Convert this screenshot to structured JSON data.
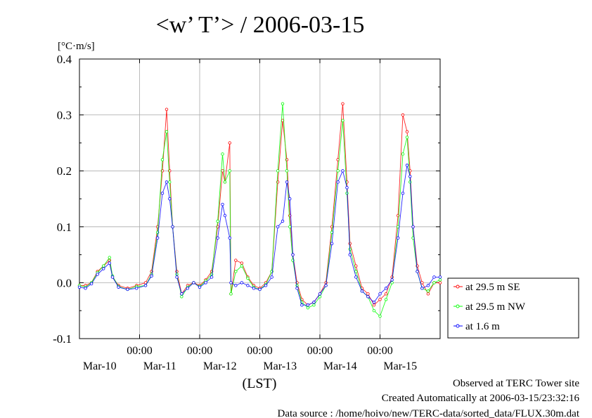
{
  "chart_data": {
    "type": "line",
    "title": "<w’ T’> / 2006-03-15",
    "ylabel": "[°C·m/s]",
    "xlabel": "(LST)",
    "ylim": [
      -0.1,
      0.4
    ],
    "yticks": [
      {
        "value": 0.4,
        "label": "0.4"
      },
      {
        "value": 0.3,
        "label": "0.3"
      },
      {
        "value": 0.2,
        "label": "0.2"
      },
      {
        "value": 0.1,
        "label": "0.1"
      },
      {
        "value": 0.0,
        "label": "0.0"
      },
      {
        "value": -0.1,
        "label": "-0.1"
      }
    ],
    "xlim": [
      0,
      6
    ],
    "xticks": [
      {
        "value": 1,
        "time": "00:00",
        "date": "Mar-11"
      },
      {
        "value": 2,
        "time": "00:00",
        "date": "Mar-12"
      },
      {
        "value": 3,
        "time": "00:00",
        "date": "Mar-13"
      },
      {
        "value": 4,
        "time": "00:00",
        "date": "Mar-14"
      },
      {
        "value": 5,
        "time": "00:00",
        "date": "Mar-15"
      }
    ],
    "date_labels": [
      {
        "value": 0.5,
        "label": "Mar-10"
      },
      {
        "value": 1.5,
        "label": "Mar-11"
      },
      {
        "value": 2.5,
        "label": "Mar-12"
      },
      {
        "value": 3.5,
        "label": "Mar-13"
      },
      {
        "value": 4.5,
        "label": "Mar-14"
      },
      {
        "value": 5.5,
        "label": "Mar-15"
      }
    ],
    "grid": true,
    "legend_position": "right-bottom",
    "series": [
      {
        "name": "at 29.5 m SE",
        "color": "#ff0000",
        "marker": "circle",
        "points": [
          [
            0,
            -0.005
          ],
          [
            0.1,
            -0.005
          ],
          [
            0.2,
            0.0
          ],
          [
            0.3,
            0.02
          ],
          [
            0.4,
            0.03
          ],
          [
            0.5,
            0.04
          ],
          [
            0.55,
            0.01
          ],
          [
            0.65,
            -0.005
          ],
          [
            0.8,
            -0.01
          ],
          [
            0.95,
            -0.005
          ],
          [
            1.1,
            0.0
          ],
          [
            1.2,
            0.02
          ],
          [
            1.3,
            0.1
          ],
          [
            1.38,
            0.2
          ],
          [
            1.45,
            0.31
          ],
          [
            1.5,
            0.2
          ],
          [
            1.55,
            0.1
          ],
          [
            1.62,
            0.02
          ],
          [
            1.7,
            -0.02
          ],
          [
            1.8,
            -0.005
          ],
          [
            1.9,
            0.0
          ],
          [
            2.0,
            -0.005
          ],
          [
            2.1,
            0.005
          ],
          [
            2.2,
            0.02
          ],
          [
            2.3,
            0.1
          ],
          [
            2.38,
            0.2
          ],
          [
            2.42,
            0.18
          ],
          [
            2.5,
            0.25
          ],
          [
            2.52,
            -0.02
          ],
          [
            2.6,
            0.04
          ],
          [
            2.7,
            0.035
          ],
          [
            2.8,
            0.01
          ],
          [
            2.9,
            -0.005
          ],
          [
            3.0,
            -0.01
          ],
          [
            3.1,
            0.0
          ],
          [
            3.2,
            0.02
          ],
          [
            3.3,
            0.18
          ],
          [
            3.38,
            0.29
          ],
          [
            3.45,
            0.22
          ],
          [
            3.5,
            0.12
          ],
          [
            3.55,
            0.05
          ],
          [
            3.62,
            0.0
          ],
          [
            3.7,
            -0.03
          ],
          [
            3.8,
            -0.04
          ],
          [
            3.9,
            -0.035
          ],
          [
            4.0,
            -0.02
          ],
          [
            4.1,
            0.0
          ],
          [
            4.2,
            0.1
          ],
          [
            4.3,
            0.22
          ],
          [
            4.38,
            0.32
          ],
          [
            4.45,
            0.18
          ],
          [
            4.5,
            0.07
          ],
          [
            4.6,
            0.03
          ],
          [
            4.7,
            -0.01
          ],
          [
            4.8,
            -0.02
          ],
          [
            4.9,
            -0.04
          ],
          [
            5.0,
            -0.03
          ],
          [
            5.1,
            -0.02
          ],
          [
            5.2,
            0.01
          ],
          [
            5.3,
            0.12
          ],
          [
            5.38,
            0.3
          ],
          [
            5.45,
            0.27
          ],
          [
            5.5,
            0.2
          ],
          [
            5.55,
            0.1
          ],
          [
            5.62,
            0.03
          ],
          [
            5.7,
            0.0
          ],
          [
            5.8,
            -0.02
          ],
          [
            5.9,
            0.0
          ],
          [
            6.0,
            0.0
          ]
        ]
      },
      {
        "name": "at 29.5 m NW",
        "color": "#00ff00",
        "marker": "circle",
        "points": [
          [
            0,
            -0.005
          ],
          [
            0.1,
            -0.008
          ],
          [
            0.2,
            0.0
          ],
          [
            0.3,
            0.018
          ],
          [
            0.4,
            0.03
          ],
          [
            0.5,
            0.045
          ],
          [
            0.55,
            0.012
          ],
          [
            0.65,
            -0.007
          ],
          [
            0.8,
            -0.012
          ],
          [
            0.95,
            -0.007
          ],
          [
            1.1,
            -0.005
          ],
          [
            1.2,
            0.015
          ],
          [
            1.3,
            0.09
          ],
          [
            1.38,
            0.22
          ],
          [
            1.45,
            0.27
          ],
          [
            1.5,
            0.18
          ],
          [
            1.55,
            0.1
          ],
          [
            1.62,
            0.015
          ],
          [
            1.7,
            -0.025
          ],
          [
            1.8,
            -0.008
          ],
          [
            1.9,
            0.0
          ],
          [
            2.0,
            -0.007
          ],
          [
            2.1,
            0.003
          ],
          [
            2.2,
            0.015
          ],
          [
            2.3,
            0.11
          ],
          [
            2.38,
            0.23
          ],
          [
            2.42,
            0.18
          ],
          [
            2.5,
            0.2
          ],
          [
            2.52,
            -0.02
          ],
          [
            2.6,
            0.02
          ],
          [
            2.7,
            0.03
          ],
          [
            2.8,
            0.008
          ],
          [
            2.9,
            -0.008
          ],
          [
            3.0,
            -0.012
          ],
          [
            3.1,
            -0.003
          ],
          [
            3.2,
            0.02
          ],
          [
            3.3,
            0.2
          ],
          [
            3.38,
            0.32
          ],
          [
            3.45,
            0.2
          ],
          [
            3.5,
            0.1
          ],
          [
            3.55,
            0.04
          ],
          [
            3.62,
            -0.005
          ],
          [
            3.7,
            -0.035
          ],
          [
            3.8,
            -0.045
          ],
          [
            3.9,
            -0.04
          ],
          [
            4.0,
            -0.025
          ],
          [
            4.1,
            -0.005
          ],
          [
            4.2,
            0.09
          ],
          [
            4.3,
            0.2
          ],
          [
            4.38,
            0.29
          ],
          [
            4.45,
            0.16
          ],
          [
            4.5,
            0.06
          ],
          [
            4.6,
            0.02
          ],
          [
            4.7,
            -0.015
          ],
          [
            4.8,
            -0.025
          ],
          [
            4.9,
            -0.05
          ],
          [
            5.0,
            -0.06
          ],
          [
            5.1,
            -0.03
          ],
          [
            5.2,
            0.0
          ],
          [
            5.3,
            0.1
          ],
          [
            5.38,
            0.23
          ],
          [
            5.45,
            0.26
          ],
          [
            5.5,
            0.18
          ],
          [
            5.55,
            0.08
          ],
          [
            5.62,
            0.02
          ],
          [
            5.7,
            -0.01
          ],
          [
            5.8,
            -0.015
          ],
          [
            5.9,
            0.0
          ],
          [
            6.0,
            0.005
          ]
        ]
      },
      {
        "name": "at 1.6 m",
        "color": "#0000ff",
        "marker": "circle",
        "points": [
          [
            0,
            -0.008
          ],
          [
            0.1,
            -0.01
          ],
          [
            0.2,
            -0.002
          ],
          [
            0.3,
            0.015
          ],
          [
            0.4,
            0.025
          ],
          [
            0.5,
            0.035
          ],
          [
            0.55,
            0.01
          ],
          [
            0.65,
            -0.008
          ],
          [
            0.8,
            -0.012
          ],
          [
            0.95,
            -0.01
          ],
          [
            1.1,
            -0.005
          ],
          [
            1.2,
            0.012
          ],
          [
            1.3,
            0.08
          ],
          [
            1.38,
            0.16
          ],
          [
            1.45,
            0.18
          ],
          [
            1.5,
            0.15
          ],
          [
            1.55,
            0.1
          ],
          [
            1.62,
            0.01
          ],
          [
            1.7,
            -0.02
          ],
          [
            1.8,
            -0.01
          ],
          [
            1.9,
            0.0
          ],
          [
            2.0,
            -0.008
          ],
          [
            2.1,
            0.0
          ],
          [
            2.2,
            0.01
          ],
          [
            2.3,
            0.08
          ],
          [
            2.38,
            0.14
          ],
          [
            2.42,
            0.12
          ],
          [
            2.5,
            0.08
          ],
          [
            2.52,
            0.0
          ],
          [
            2.6,
            -0.005
          ],
          [
            2.7,
            0.0
          ],
          [
            2.8,
            -0.005
          ],
          [
            2.9,
            -0.01
          ],
          [
            3.0,
            -0.012
          ],
          [
            3.1,
            -0.005
          ],
          [
            3.2,
            0.01
          ],
          [
            3.3,
            0.1
          ],
          [
            3.38,
            0.11
          ],
          [
            3.45,
            0.18
          ],
          [
            3.5,
            0.15
          ],
          [
            3.55,
            0.05
          ],
          [
            3.62,
            -0.01
          ],
          [
            3.7,
            -0.04
          ],
          [
            3.8,
            -0.04
          ],
          [
            3.9,
            -0.035
          ],
          [
            4.0,
            -0.02
          ],
          [
            4.1,
            -0.005
          ],
          [
            4.2,
            0.07
          ],
          [
            4.3,
            0.18
          ],
          [
            4.38,
            0.2
          ],
          [
            4.45,
            0.17
          ],
          [
            4.5,
            0.05
          ],
          [
            4.6,
            0.01
          ],
          [
            4.7,
            -0.015
          ],
          [
            4.8,
            -0.025
          ],
          [
            4.9,
            -0.035
          ],
          [
            5.0,
            -0.02
          ],
          [
            5.1,
            -0.01
          ],
          [
            5.2,
            0.005
          ],
          [
            5.3,
            0.08
          ],
          [
            5.38,
            0.16
          ],
          [
            5.45,
            0.21
          ],
          [
            5.5,
            0.19
          ],
          [
            5.55,
            0.1
          ],
          [
            5.62,
            0.02
          ],
          [
            5.7,
            -0.01
          ],
          [
            5.8,
            -0.005
          ],
          [
            5.9,
            0.01
          ],
          [
            6.0,
            0.01
          ]
        ]
      }
    ]
  },
  "footer": {
    "line1": "Observed at TERC Tower site",
    "line2": "Created Automatically at 2006-03-15/23:32:16",
    "line3": "Data source : /home/hoivo/new/TERC-data/sorted_data/FLUX.30m.dat"
  }
}
